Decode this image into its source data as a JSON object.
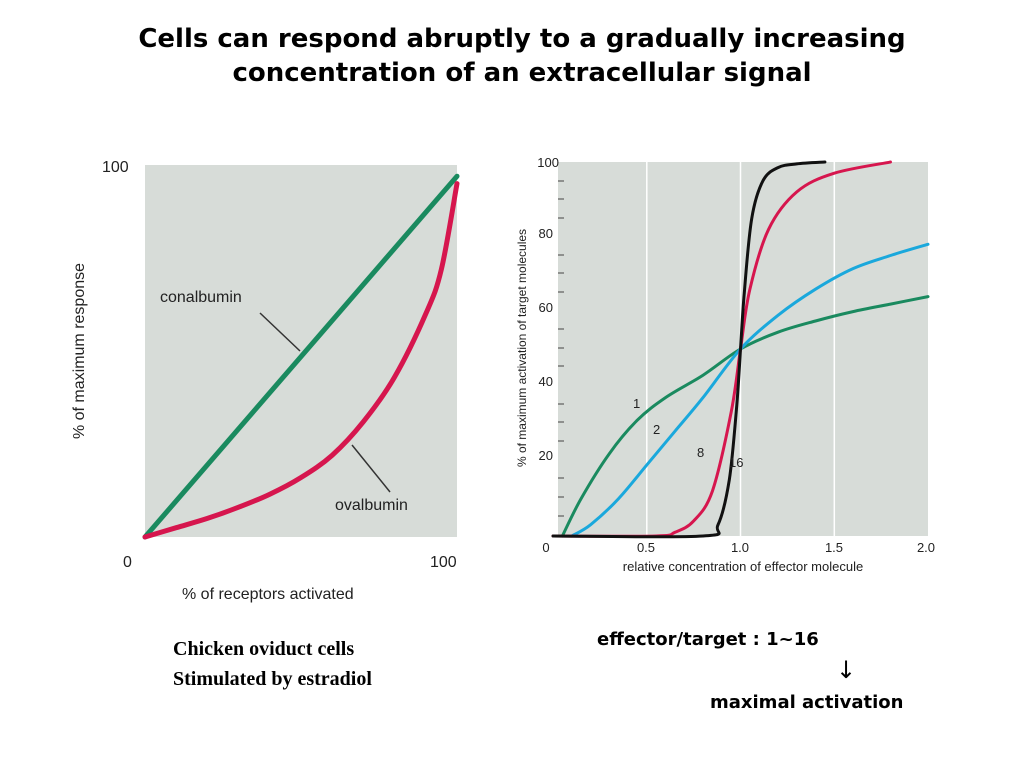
{
  "title_lines": [
    "Cells can respond abruptly to a gradually increasing",
    "concentration of an extracellular signal"
  ],
  "chart_data": [
    {
      "type": "line",
      "xlabel": "% of receptors activated",
      "ylabel": "% of maximum response",
      "xlim": [
        0,
        100
      ],
      "ylim": [
        0,
        100
      ],
      "xticks": [
        "0",
        "100"
      ],
      "yticks": [
        "100"
      ],
      "grid": false,
      "background": "#d7dcd8",
      "series": [
        {
          "name": "conalbumin",
          "color": "#1a8a5f",
          "x": [
            0,
            100
          ],
          "y": [
            0,
            97
          ]
        },
        {
          "name": "ovalbumin",
          "color": "#d6164e",
          "x": [
            0,
            10,
            20,
            30,
            40,
            50,
            60,
            70,
            80,
            90,
            95,
            100
          ],
          "y": [
            0,
            2.5,
            5,
            8,
            11.5,
            16,
            22,
            31,
            43,
            60,
            72,
            95
          ]
        }
      ]
    },
    {
      "type": "line",
      "xlabel": "relative concentration of effector molecule",
      "ylabel": "% of maximum activation of target molecules",
      "xlim": [
        0,
        2
      ],
      "ylim": [
        0,
        100
      ],
      "xticks": [
        "0",
        "0.5",
        "1.0",
        "1.5",
        "2.0"
      ],
      "yticks": [
        "20",
        "40",
        "60",
        "80",
        "100"
      ],
      "grid": true,
      "background": "#d7dcd8",
      "series": [
        {
          "name": "1",
          "color": "#1a8a5f",
          "x": [
            0.05,
            0.15,
            0.3,
            0.45,
            0.6,
            0.8,
            1.0,
            1.2,
            1.4,
            1.6,
            1.8,
            2.0
          ],
          "y": [
            0,
            10,
            22,
            31,
            37,
            43,
            50,
            54.5,
            57.5,
            60,
            62,
            64
          ]
        },
        {
          "name": "2",
          "color": "#1aa8dc",
          "x": [
            0.1,
            0.2,
            0.35,
            0.5,
            0.65,
            0.8,
            1.0,
            1.2,
            1.4,
            1.6,
            1.8,
            2.0
          ],
          "y": [
            0,
            3,
            10,
            19,
            28,
            37,
            50,
            59,
            66,
            71.5,
            75,
            78
          ]
        },
        {
          "name": "8",
          "color": "#d6164e",
          "x": [
            0,
            0.55,
            0.65,
            0.75,
            0.85,
            0.95,
            1.0,
            1.05,
            1.15,
            1.3,
            1.5,
            1.8
          ],
          "y": [
            0,
            0,
            1,
            4,
            12,
            33,
            50,
            66,
            82,
            92,
            97,
            100
          ]
        },
        {
          "name": "16",
          "color": "#111111",
          "x": [
            0,
            0.8,
            0.88,
            0.94,
            0.98,
            1.0,
            1.02,
            1.06,
            1.12,
            1.2,
            1.3,
            1.45
          ],
          "y": [
            0,
            0,
            3,
            15,
            35,
            50,
            65,
            85,
            95,
            98.5,
            99.5,
            100
          ]
        }
      ]
    }
  ],
  "caption_left": [
    "Chicken oviduct cells",
    "Stimulated by estradiol"
  ],
  "note_ratio": "effector/target : 1~16",
  "note_arrow": "↓",
  "note_result": "maximal activation"
}
